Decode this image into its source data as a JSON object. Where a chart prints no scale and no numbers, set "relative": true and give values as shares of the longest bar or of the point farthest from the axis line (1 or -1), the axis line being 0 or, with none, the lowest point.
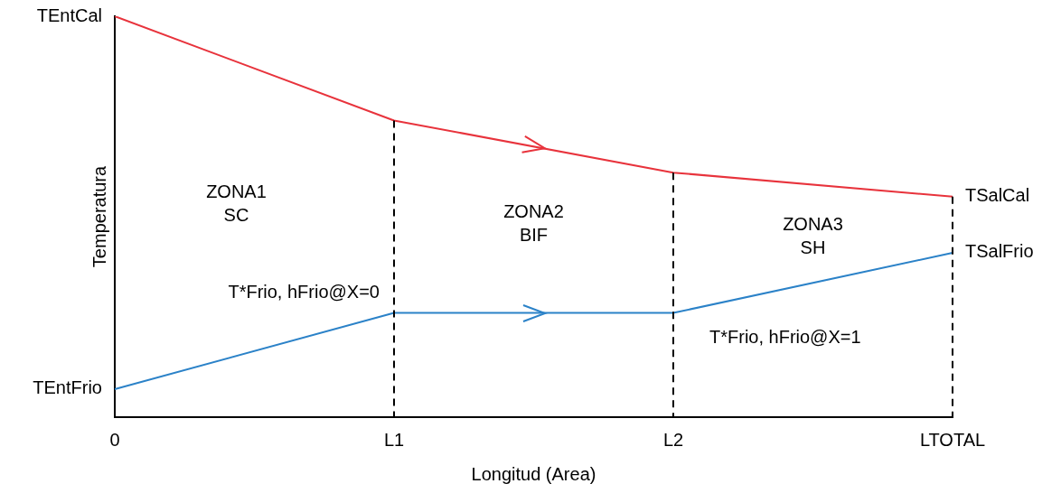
{
  "chart_data": {
    "type": "line",
    "relative": true,
    "xlabel": "Longitud (Area)",
    "ylabel": "Temperatura",
    "categories": [
      "0",
      "L1",
      "L2",
      "LTOTAL"
    ],
    "series": [
      {
        "color": "#e8333c",
        "values": [
          1,
          0.74,
          0.61,
          0.55
        ]
      },
      {
        "color": "#2b82c8",
        "values": [
          0.07,
          0.26,
          0.26,
          0.41
        ]
      }
    ],
    "ref_lines": [
      {
        "axis": "x",
        "value": "L1",
        "color": "#000000",
        "line_style": "dashed"
      },
      {
        "axis": "x",
        "value": "L2",
        "color": "#000000",
        "line_style": "dashed"
      },
      {
        "axis": "x",
        "value": "LTOTAL",
        "color": "#000000",
        "line_style": "dashed"
      }
    ],
    "annotations": [
      {
        "text": "TEntCal",
        "x": "0",
        "y": 1
      },
      {
        "text": "TEntFrio",
        "x": "0",
        "y": 0.07
      },
      {
        "text": "TSalCal",
        "x": "LTOTAL",
        "y": 0.55
      },
      {
        "text": "TSalFrio",
        "x": "LTOTAL",
        "y": 0.41
      },
      "ZONA1\nSC",
      "ZONA2\nBIF",
      "ZONA3\nSH",
      {
        "text": "T*Frio, hFrio@X=0",
        "x": "L1",
        "y": 0.26
      },
      {
        "text": "T*Frio, hFrio@X=1",
        "x": "L2",
        "y": 0.26
      }
    ],
    "grid": false,
    "legend": false,
    "marker": "none",
    "line_style": "solid"
  }
}
